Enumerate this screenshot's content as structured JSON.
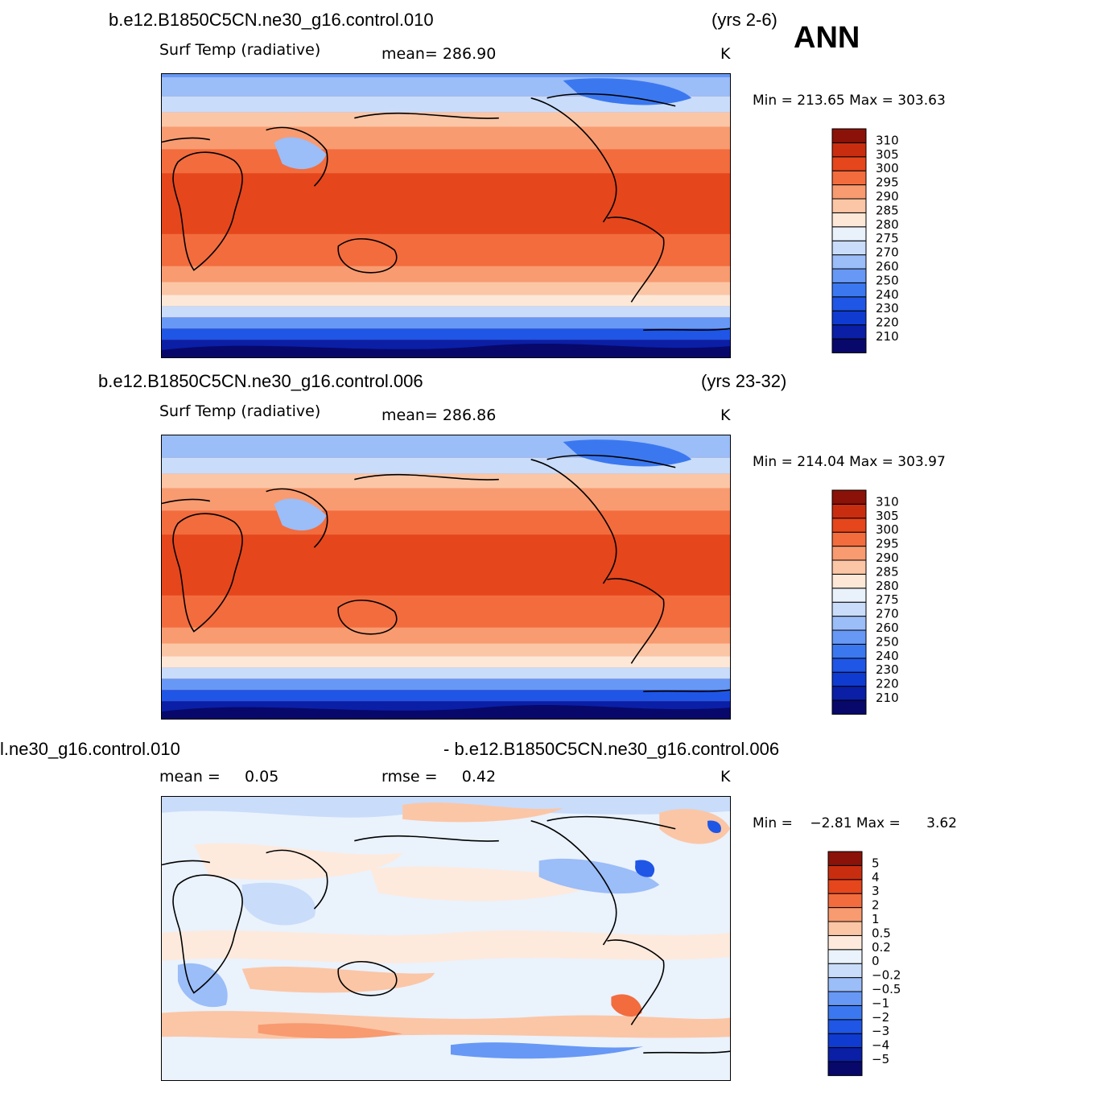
{
  "overall": {
    "season": "ANN"
  },
  "panels": [
    {
      "case": "b.e12.B1850C5CN.ne30_g16.control.010",
      "years": "(yrs 2-6)",
      "field": "Surf Temp (radiative)",
      "stat": "mean= 286.90",
      "units": "K",
      "minmax": "Min = 213.65 Max = 303.63",
      "legend": [
        "310",
        "305",
        "300",
        "295",
        "290",
        "285",
        "280",
        "275",
        "270",
        "260",
        "250",
        "240",
        "230",
        "220",
        "210"
      ]
    },
    {
      "case": "b.e12.B1850C5CN.ne30_g16.control.006",
      "years": "(yrs 23-32)",
      "field": "Surf Temp (radiative)",
      "stat": "mean= 286.86",
      "units": "K",
      "minmax": "Min = 214.04 Max = 303.97",
      "legend": [
        "310",
        "305",
        "300",
        "295",
        "290",
        "285",
        "280",
        "275",
        "270",
        "260",
        "250",
        "240",
        "230",
        "220",
        "210"
      ]
    },
    {
      "case_left": "l.ne30_g16.control.010",
      "case_right": "- b.e12.B1850C5CN.ne30_g16.control.006",
      "stat_mean": "mean =     0.05",
      "stat_rmse": "rmse =     0.42",
      "units": "K",
      "minmax": "Min =    −2.81 Max =      3.62",
      "legend": [
        "5",
        "4",
        "3",
        "2",
        "1",
        "0.5",
        "0.2",
        "0",
        "−0.2",
        "−0.5",
        "−1",
        "−2",
        "−3",
        "−4",
        "−5"
      ]
    }
  ],
  "colors": {
    "abs_scale": [
      "#08086b",
      "#0a1fa6",
      "#0f3bd1",
      "#1f56e6",
      "#3b78f0",
      "#6798f5",
      "#9bbdf8",
      "#c9dcfa",
      "#e9f1fb",
      "#fde8d8",
      "#fbc6a6",
      "#f89b70",
      "#f26c3e",
      "#e5461c",
      "#c92d0f",
      "#8a1208"
    ],
    "diff_scale": [
      "#08086b",
      "#0a1fa6",
      "#0f3bd1",
      "#1f56e6",
      "#3b78f0",
      "#6798f5",
      "#9bbdf8",
      "#c9dcfa",
      "#eaf2fc",
      "#fdeadd",
      "#fbc6a6",
      "#f89b70",
      "#f26c3e",
      "#e5461c",
      "#c92d0f",
      "#8a1208"
    ]
  }
}
